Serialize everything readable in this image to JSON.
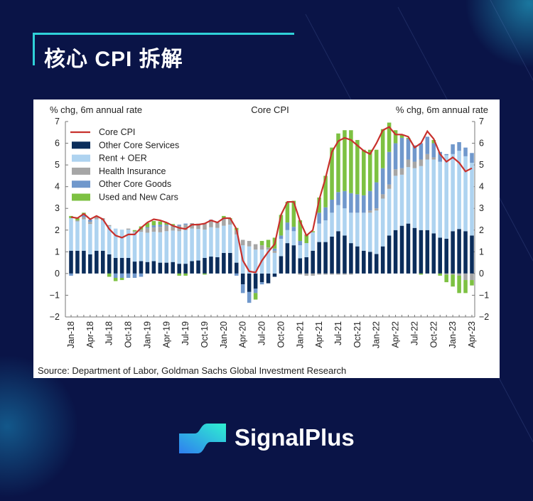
{
  "header": {
    "title": "核心 CPI 拆解"
  },
  "brand": {
    "name": "SignalPlus"
  },
  "colors": {
    "background": "#0a1447",
    "accent": "#2fd1d8"
  },
  "chart_data": {
    "type": "bar",
    "stacked": true,
    "title": "Core CPI",
    "ylabel_left": "% chg, 6m annual rate",
    "ylabel_right": "% chg, 6m annual rate",
    "ylim": [
      -2,
      7
    ],
    "yticks": [
      -2,
      -1,
      0,
      1,
      2,
      3,
      4,
      5,
      6,
      7
    ],
    "grid": false,
    "legend_position": "top-left",
    "source": "Source: Department of Labor, Goldman Sachs Global Investment Research",
    "x_tick_labels": [
      "Jan-18",
      "Apr-18",
      "Jul-18",
      "Oct-18",
      "Jan-19",
      "Apr-19",
      "Jul-19",
      "Oct-19",
      "Jan-20",
      "Apr-20",
      "Jul-20",
      "Oct-20",
      "Jan-21",
      "Apr-21",
      "Jul-21",
      "Oct-21",
      "Jan-22",
      "Apr-22",
      "Jul-22",
      "Oct-22",
      "Jan-23",
      "Apr-23"
    ],
    "start_month": "Jan-18",
    "series": [
      {
        "name": "Other Core Services",
        "color": "#0b2d5b",
        "values": [
          1.05,
          1.05,
          1.05,
          0.88,
          1.05,
          1.05,
          0.88,
          0.72,
          0.72,
          0.72,
          0.55,
          0.57,
          0.53,
          0.57,
          0.5,
          0.5,
          0.53,
          0.45,
          0.45,
          0.57,
          0.6,
          0.72,
          0.78,
          0.75,
          0.95,
          0.95,
          0.5,
          -0.5,
          -0.85,
          -0.7,
          -0.4,
          -0.45,
          -0.15,
          0.8,
          1.4,
          1.3,
          0.7,
          0.75,
          1.05,
          1.45,
          1.45,
          1.7,
          1.95,
          1.75,
          1.4,
          1.25,
          1.05,
          1.0,
          0.9,
          1.25,
          1.75,
          2.0,
          2.2,
          2.3,
          2.1,
          2.0,
          2.0,
          1.85,
          1.65,
          1.6,
          1.95,
          2.05,
          1.95,
          1.75
        ]
      },
      {
        "name": "Rent + OER",
        "color": "#aed3f0",
        "values": [
          1.5,
          1.35,
          1.45,
          1.4,
          1.45,
          1.4,
          1.3,
          1.35,
          1.3,
          1.3,
          1.35,
          1.35,
          1.35,
          1.35,
          1.4,
          1.45,
          1.45,
          1.5,
          1.55,
          1.5,
          1.45,
          1.3,
          1.35,
          1.35,
          1.25,
          1.3,
          1.3,
          1.3,
          1.25,
          1.1,
          1.1,
          1.1,
          0.95,
          0.8,
          0.6,
          0.65,
          0.6,
          0.65,
          0.85,
          0.85,
          1.0,
          1.1,
          1.2,
          1.25,
          1.4,
          1.55,
          1.75,
          1.8,
          2.0,
          2.2,
          2.15,
          2.5,
          2.35,
          2.6,
          2.75,
          2.95,
          3.25,
          3.4,
          3.5,
          3.85,
          3.55,
          3.6,
          3.45,
          3.35
        ]
      },
      {
        "name": "Health Insurance",
        "color": "#a6a6a6",
        "values": [
          0,
          0.05,
          0.1,
          0.1,
          0.1,
          0.1,
          0.05,
          0,
          0,
          0.05,
          0.05,
          0.1,
          0.2,
          0.2,
          0.25,
          0.25,
          0.2,
          0.25,
          0.25,
          0.25,
          0.25,
          0.3,
          0.3,
          0.25,
          0.3,
          0.25,
          0.2,
          0.25,
          0.25,
          0.25,
          0.2,
          0.1,
          0.1,
          0,
          0,
          0,
          -0.05,
          -0.1,
          -0.1,
          -0.05,
          -0.05,
          -0.05,
          -0.05,
          -0.05,
          -0.05,
          0,
          0,
          0.1,
          0.1,
          0.2,
          0.2,
          0.3,
          0.3,
          0.35,
          0.3,
          0.3,
          0.25,
          0.1,
          0,
          -0.05,
          -0.05,
          -0.1,
          -0.3,
          -0.3
        ]
      },
      {
        "name": "Other Core Goods",
        "color": "#7098cc",
        "values": [
          -0.1,
          0,
          0.1,
          0.1,
          0,
          0,
          0,
          -0.2,
          -0.2,
          -0.2,
          -0.2,
          -0.15,
          0.05,
          0.1,
          0.1,
          0.05,
          0.05,
          0.05,
          0.05,
          0,
          0,
          0,
          0.05,
          0,
          0.05,
          0,
          -0.1,
          -0.4,
          -0.5,
          -0.2,
          -0.1,
          0,
          0.1,
          0.15,
          0.35,
          0.2,
          0.2,
          0,
          0,
          0.5,
          0.6,
          0.6,
          0.6,
          0.8,
          0.9,
          0.85,
          0.8,
          0.9,
          1.2,
          1.2,
          1.5,
          1.2,
          1.4,
          0.95,
          0.75,
          0.75,
          0.8,
          0.65,
          0.45,
          0.05,
          0.45,
          0.4,
          0.4,
          0.45
        ]
      },
      {
        "name": "Used and New Cars",
        "color": "#7dc142",
        "values": [
          0.1,
          0.1,
          0.1,
          0,
          0.05,
          0,
          -0.15,
          -0.15,
          -0.1,
          0,
          0.05,
          0.15,
          0.2,
          0.2,
          0.15,
          0.1,
          0.05,
          -0.1,
          -0.1,
          0,
          0,
          -0.05,
          0,
          0,
          0.1,
          0.05,
          0.1,
          0,
          0,
          -0.3,
          0.2,
          0.35,
          0.5,
          0.95,
          0.95,
          1.2,
          0.95,
          0.4,
          0.05,
          0.7,
          1.45,
          2.4,
          2.7,
          2.8,
          2.9,
          2.5,
          2.1,
          1.9,
          1.5,
          1.8,
          1.35,
          0.6,
          0.15,
          0.05,
          0,
          -0.05,
          0,
          0.15,
          -0.1,
          -0.35,
          -0.55,
          -0.8,
          -0.6,
          -0.25
        ]
      }
    ],
    "line": {
      "name": "Core CPI",
      "color": "#c8312d",
      "values": [
        2.6,
        2.55,
        2.75,
        2.5,
        2.65,
        2.5,
        2.05,
        1.75,
        1.65,
        1.8,
        1.8,
        2.1,
        2.35,
        2.5,
        2.45,
        2.35,
        2.2,
        2.1,
        2.05,
        2.25,
        2.25,
        2.3,
        2.45,
        2.35,
        2.55,
        2.55,
        2.05,
        0.6,
        0.1,
        0.05,
        0.6,
        1.0,
        1.35,
        2.7,
        3.3,
        3.3,
        2.4,
        1.75,
        2.0,
        3.4,
        4.4,
        5.6,
        6.1,
        6.25,
        6.15,
        5.9,
        5.65,
        5.5,
        6.0,
        6.6,
        6.75,
        6.4,
        6.4,
        6.3,
        5.8,
        6.0,
        6.55,
        6.2,
        5.5,
        5.15,
        5.35,
        5.1,
        4.7,
        4.85
      ]
    }
  }
}
